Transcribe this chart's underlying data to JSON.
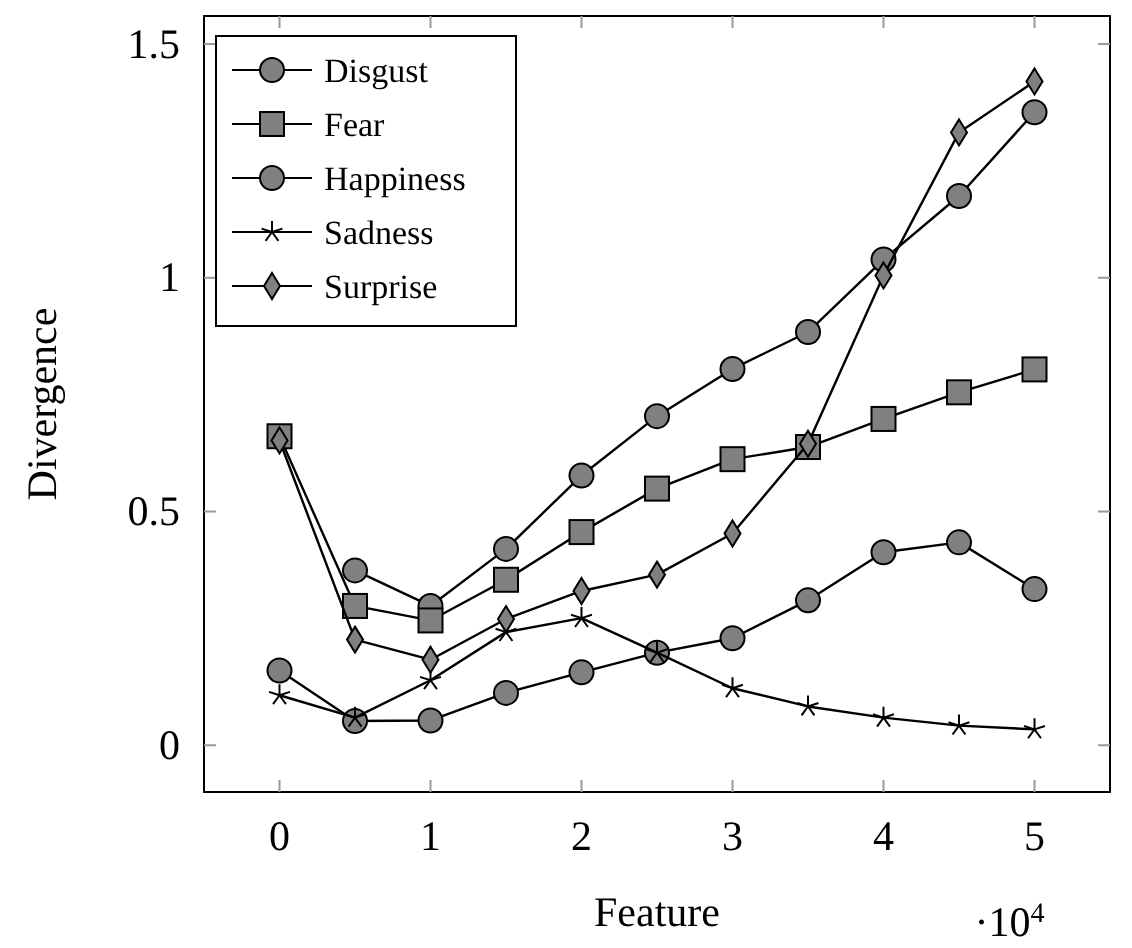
{
  "chart_data": {
    "type": "line",
    "xlabel": "Feature",
    "ylabel": "Divergence",
    "annotations": [
      "·10$^{4}$"
    ],
    "x": [
      0,
      0.5,
      1,
      1.5,
      2,
      2.5,
      3,
      3.5,
      4,
      4.5,
      5
    ],
    "xlim": [
      -0.5,
      5.5
    ],
    "xticks": [
      0,
      1,
      2,
      3,
      4,
      5
    ],
    "ylim": [
      -0.1,
      1.56
    ],
    "yticks": [
      0,
      0.5,
      1,
      1.5
    ],
    "legend": "top left",
    "grid": false,
    "line_style": "solid",
    "series": [
      {
        "name": "Disgust",
        "color": "#000000",
        "marker": "circle",
        "values": [
          null,
          0.374,
          0.298,
          0.42,
          0.577,
          0.704,
          0.805,
          0.884,
          1.039,
          1.175,
          1.354
        ]
      },
      {
        "name": "Fear",
        "color": "#000000",
        "marker": "square",
        "values": [
          0.661,
          0.298,
          0.267,
          0.354,
          0.456,
          0.549,
          0.612,
          0.638,
          0.698,
          0.755,
          0.804
        ]
      },
      {
        "name": "Happiness",
        "color": "#000000",
        "marker": "circle",
        "values": [
          0.16,
          0.052,
          0.053,
          0.112,
          0.156,
          0.198,
          0.229,
          0.31,
          0.413,
          0.434,
          0.334
        ]
      },
      {
        "name": "Sadness",
        "color": "#000000",
        "marker": "cross",
        "values": [
          0.107,
          0.059,
          0.139,
          0.242,
          0.272,
          0.198,
          0.122,
          0.083,
          0.059,
          0.042,
          0.034
        ]
      },
      {
        "name": "Surprise",
        "color": "#000000",
        "marker": "diamond",
        "values": [
          0.652,
          0.226,
          0.183,
          0.27,
          0.33,
          0.365,
          0.453,
          0.645,
          1.005,
          1.311,
          1.42
        ]
      }
    ]
  }
}
